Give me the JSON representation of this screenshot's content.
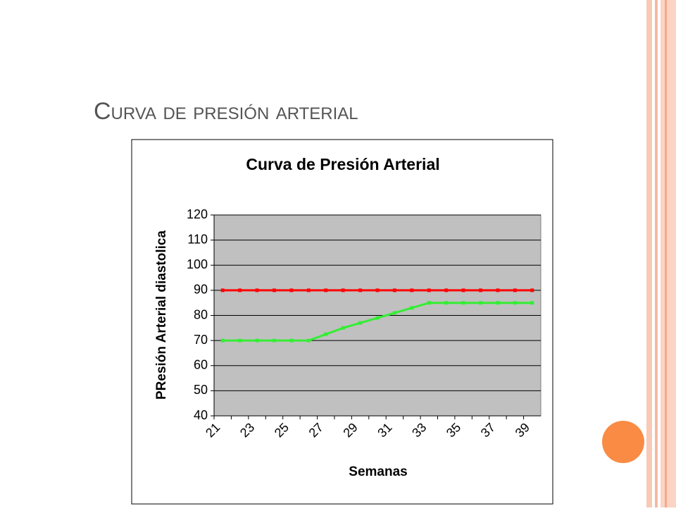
{
  "slide_title": "Curva de presión arterial",
  "chart_data": {
    "type": "line",
    "title": "Curva de Presión Arterial",
    "x_label": "Semanas",
    "y_label": "PResión Arterial diastolica",
    "categories": [
      "21",
      null,
      "23",
      null,
      "25",
      null,
      "27",
      null,
      "29",
      null,
      "31",
      null,
      "33",
      null,
      "35",
      null,
      "37",
      null,
      "39"
    ],
    "series": [
      {
        "color": "#ff0000",
        "values": [
          90,
          90,
          90,
          90,
          90,
          90,
          90,
          90,
          90,
          90,
          90,
          90,
          90,
          90,
          90,
          90,
          90,
          90,
          90
        ]
      },
      {
        "color": "#33ee33",
        "values": [
          70,
          70,
          70,
          70,
          70,
          70,
          72.5,
          75,
          77,
          79,
          81,
          83,
          85,
          85,
          85,
          85,
          85,
          85,
          85
        ]
      }
    ],
    "ylim": [
      40,
      120
    ],
    "yticks": [
      40,
      50,
      60,
      70,
      80,
      90,
      100,
      110,
      120
    ],
    "grid": true,
    "plot_background": "#c0c0c0"
  }
}
